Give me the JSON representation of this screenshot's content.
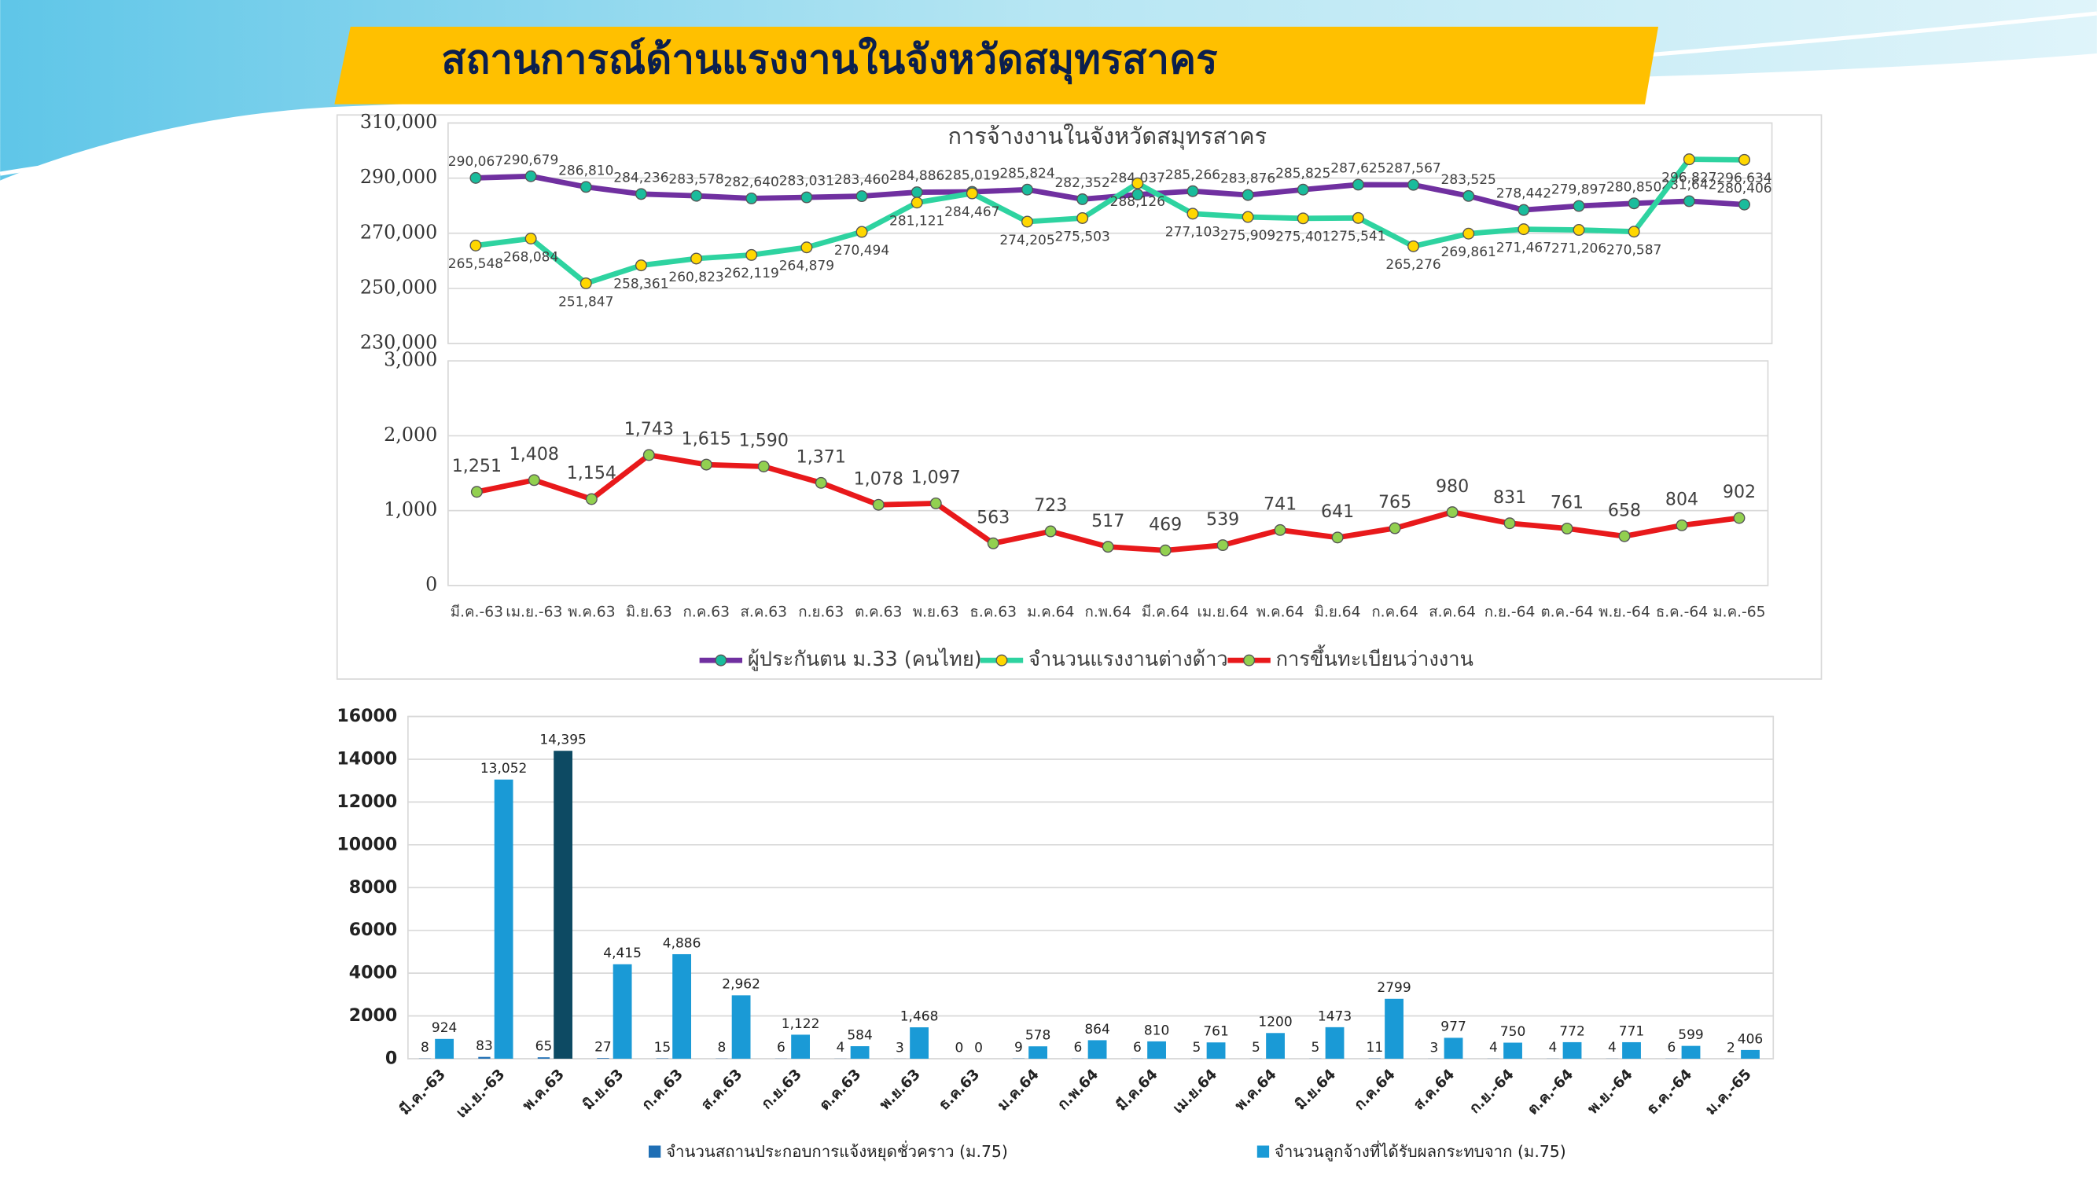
{
  "title": "สถานการณ์ด้านแรงงานในจังหวัดสมุทรสาคร",
  "chart_data": [
    {
      "type": "line",
      "title": "การจ้างงานในจังหวัดสมุทรสาคร",
      "series": [
        {
          "name": "ผู้ประกันตน ม.33 (คนไทย)",
          "color": "#7030a0",
          "marker_color": "#1abc9c",
          "values": [
            290067,
            290679,
            286810,
            284236,
            283578,
            282640,
            283031,
            283460,
            284886,
            285019,
            285824,
            282352,
            284037,
            285266,
            283876,
            285825,
            287625,
            287567,
            283525,
            278442,
            279897,
            280850,
            281642,
            280406
          ],
          "value_labels": [
            "290,067",
            "290,679",
            "286,810",
            "284,236",
            "283,578",
            "282,640",
            "283,031",
            "283,460",
            "284,886",
            "285,019",
            "285,824",
            "282,352",
            "284,037",
            "285,266",
            "283,876",
            "285,825",
            "287,625",
            "287,567",
            "283,525",
            "278,442",
            "279,897",
            "280,850",
            "281,642",
            "280,406"
          ]
        },
        {
          "name": "จำนวนแรงงานต่างด้าว",
          "color": "#2ed3a0",
          "marker_color": "#ffd700",
          "values": [
            265548,
            268084,
            251847,
            258361,
            260823,
            262119,
            264879,
            270494,
            281121,
            284467,
            274205,
            275503,
            288126,
            277103,
            275909,
            275401,
            275541,
            265276,
            269861,
            271467,
            271206,
            270587,
            296827,
            296634
          ],
          "value_labels": [
            "265,548",
            "268,084",
            "251,847",
            "258,361",
            "260,823",
            "262,119",
            "264,879",
            "270,494",
            "281,121",
            "284,467",
            "274,205",
            "275,503",
            "288,126",
            "277,103",
            "275,909",
            "275,401",
            "275,541",
            "265,276",
            "269,861",
            "271,467",
            "271,206",
            "270,587",
            "296,827",
            "296,634"
          ]
        }
      ],
      "ylim": [
        230000,
        310000
      ],
      "yticks": [
        {
          "value": 230000,
          "label": "230,000"
        },
        {
          "value": 250000,
          "label": "250,000"
        },
        {
          "value": 270000,
          "label": "270,000"
        },
        {
          "value": 290000,
          "label": "290,000"
        },
        {
          "value": 310000,
          "label": "310,000"
        }
      ],
      "grid": true
    },
    {
      "type": "line",
      "categories": [
        "มี.ค.-63",
        "เม.ย.-63",
        "พ.ค.63",
        "มิ.ย.63",
        "ก.ค.63",
        "ส.ค.63",
        "ก.ย.63",
        "ต.ค.63",
        "พ.ย.63",
        "ธ.ค.63",
        "ม.ค.64",
        "ก.พ.64",
        "มี.ค.64",
        "เม.ย.64",
        "พ.ค.64",
        "มิ.ย.64",
        "ก.ค.64",
        "ส.ค.64",
        "ก.ย.-64",
        "ต.ค.-64",
        "พ.ย.-64",
        "ธ.ค.-64",
        "ม.ค.-65"
      ],
      "series": [
        {
          "name": "การขึ้นทะเบียนว่างงาน",
          "color": "#e8191b",
          "marker_color": "#92d050",
          "values": [
            1251,
            1408,
            1154,
            1743,
            1615,
            1590,
            1371,
            1078,
            1097,
            563,
            723,
            517,
            469,
            539,
            741,
            641,
            765,
            980,
            831,
            761,
            658,
            804,
            902
          ],
          "value_labels": [
            "1,251",
            "1,408",
            "1,154",
            "1,743",
            "1,615",
            "1,590",
            "1,371",
            "1,078",
            "1,097",
            "563",
            "723",
            "517",
            "469",
            "539",
            "741",
            "641",
            "765",
            "980",
            "831",
            "761",
            "658",
            "804",
            "902"
          ]
        }
      ],
      "ylim": [
        0,
        3000
      ],
      "yticks": [
        0,
        {
          "value": 1000,
          "label": "1,000"
        },
        {
          "value": 2000,
          "label": "2,000"
        },
        {
          "value": 3000,
          "label": "3,000"
        }
      ],
      "grid": true,
      "legend": "bottom"
    },
    {
      "type": "bar",
      "categories": [
        "มี.ค.-63",
        "เม.ย.-63",
        "พ.ค.63",
        "มิ.ย.63",
        "ก.ค.63",
        "ส.ค.63",
        "ก.ย.63",
        "ต.ค.63",
        "พ.ย.63",
        "ธ.ค.63",
        "ม.ค.64",
        "ก.พ.64",
        "มี.ค.64",
        "เม.ย.64",
        "พ.ค.64",
        "มิ.ย.64",
        "ก.ค.64",
        "ส.ค.64",
        "ก.ย.-64",
        "ต.ค.-64",
        "พ.ย.-64",
        "ธ.ค.-64",
        "ม.ค.-65"
      ],
      "series": [
        {
          "name": "จำนวนสถานประกอบการแจ้งหยุดชั่วคราว (ม.75)",
          "color": "#1f6fb5",
          "values": [
            8,
            83,
            65,
            27,
            15,
            8,
            6,
            4,
            3,
            0,
            9,
            6,
            6,
            5,
            5,
            5,
            11,
            3,
            4,
            4,
            4,
            6,
            2
          ]
        },
        {
          "name": "จำนวนลูกจ้างที่ได้รับผลกระทบจาก (ม.75)",
          "color": "#1a9ad6",
          "colors": [
            "#1a9ad6",
            "#1a9ad6",
            "#0d4a63",
            "#1a9ad6",
            "#1a9ad6",
            "#1a9ad6",
            "#1a9ad6",
            "#1a9ad6",
            "#1a9ad6",
            "#1a9ad6",
            "#1a9ad6",
            "#1a9ad6",
            "#1a9ad6",
            "#1a9ad6",
            "#1a9ad6",
            "#1a9ad6",
            "#1a9ad6",
            "#1a9ad6",
            "#1a9ad6",
            "#1a9ad6",
            "#1a9ad6",
            "#1a9ad6",
            "#1a9ad6"
          ],
          "values": [
            924,
            13052,
            14395,
            4415,
            4886,
            2962,
            1122,
            584,
            1468,
            0,
            578,
            864,
            810,
            761,
            1200,
            1473,
            2799,
            977,
            750,
            772,
            771,
            599,
            406
          ],
          "value_labels": [
            "924",
            "13,052",
            "14,395",
            "4,415",
            "4,886",
            "2,962",
            "1,122",
            "584",
            "1,468",
            "0",
            "578",
            "864",
            "810",
            "761",
            "1200",
            "1473",
            "2799",
            "977",
            "750",
            "772",
            "771",
            "599",
            "406"
          ]
        }
      ],
      "ylim": [
        0,
        16000
      ],
      "yticks": [
        0,
        2000,
        4000,
        6000,
        8000,
        10000,
        12000,
        14000,
        16000
      ],
      "grid": true
    }
  ]
}
